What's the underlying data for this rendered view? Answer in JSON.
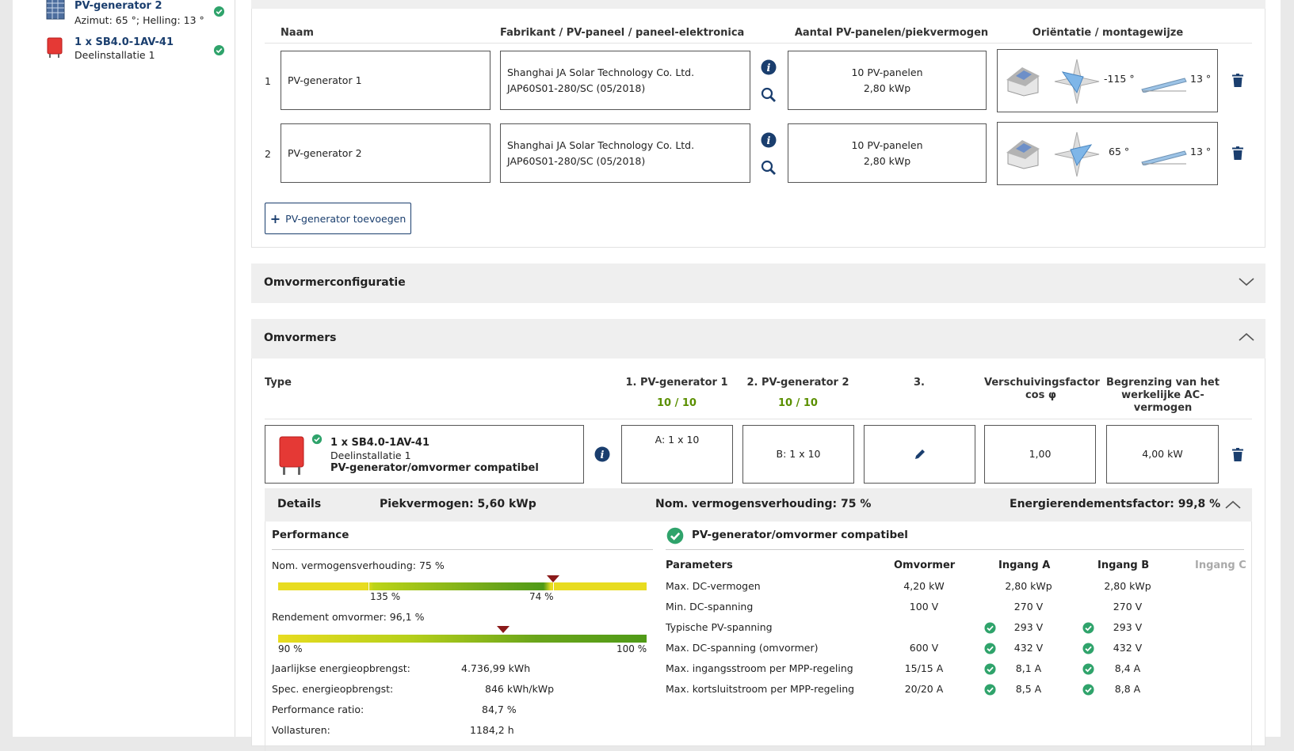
{
  "sidebar": {
    "items": [
      {
        "title": "PV-generator 2",
        "subtitle": "Azimut: 65 °; Helling: 13 °",
        "icon": "solar-panel-icon"
      },
      {
        "title": "1 x SB4.0-1AV-41",
        "subtitle": "Deelinstallatie 1",
        "icon": "inverter-icon"
      }
    ]
  },
  "generators": {
    "headers": {
      "name": "Naam",
      "manufacturer": "Fabrikant / PV-paneel / paneel-elektronica",
      "count": "Aantal PV-panelen/piekvermogen",
      "orientation": "Oriëntatie / montagewijze"
    },
    "rows": [
      {
        "index": "1",
        "name": "PV-generator 1",
        "maker": "Shanghai JA Solar Technology Co. Ltd.",
        "model": "JAP60S01-280/SC (05/2018)",
        "panels": "10 PV-panelen",
        "power": "2,80 kWp",
        "azimuth": "-115 °",
        "tilt": "13 °"
      },
      {
        "index": "2",
        "name": "PV-generator 2",
        "maker": "Shanghai JA Solar Technology Co. Ltd.",
        "model": "JAP60S01-280/SC (05/2018)",
        "panels": "10 PV-panelen",
        "power": "2,80 kWp",
        "azimuth": "65 °",
        "tilt": "13 °"
      }
    ],
    "add_button": "PV-generator toevoegen"
  },
  "panels": {
    "config_title": "Omvormerconfiguratie",
    "inverters_title": "Omvormers"
  },
  "inverter_table": {
    "headers": {
      "type": "Type",
      "gen1": "1. PV-generator 1",
      "gen1_count": "10 / 10",
      "gen2": "2. PV-generator 2",
      "gen2_count": "10 / 10",
      "gen3": "3.",
      "cosphi_line1": "Verschuivingsfactor",
      "cosphi_line2": "cos φ",
      "limit_line1": "Begrenzing van het",
      "limit_line2": "werkelijke AC-",
      "limit_line3": "vermogen"
    },
    "row": {
      "title": "1 x SB4.0-1AV-41",
      "subtitle": "Deelinstallatie 1",
      "status": "PV-generator/omvormer compatibel",
      "input_a": "A: 1 x 10",
      "input_b": "B: 1 x 10",
      "cosphi": "1,00",
      "limit": "4,00 kW"
    }
  },
  "details": {
    "label": "Details",
    "peak": "Piekvermogen: 5,60 kWp",
    "ratio": "Nom. vermogensverhouding: 75 %",
    "energy": "Energierendementsfactor: 99,8 %"
  },
  "performance": {
    "title": "Performance",
    "ratio_label": "Nom. vermogensverhouding: 75 %",
    "ratio_value": 75,
    "ratio_tick_left": "135 %",
    "ratio_tick_right": "74 %",
    "efficiency_label": "Rendement omvormer: 96,1 %",
    "efficiency_value": 96.1,
    "eff_min": "90 %",
    "eff_max": "100 %",
    "stats": [
      {
        "label": "Jaarlijkse energieopbrengst:",
        "value": "4.736,99 kWh"
      },
      {
        "label": "Spec. energieopbrengst:",
        "value": "846 kWh/kWp"
      },
      {
        "label": "Performance ratio:",
        "value": "84,7 %"
      },
      {
        "label": "Vollasturen:",
        "value": "1184,2 h"
      }
    ]
  },
  "compat": {
    "title": "PV-generator/omvormer compatibel",
    "columns": [
      "Parameters",
      "Omvormer",
      "Ingang A",
      "Ingang B",
      "Ingang C"
    ],
    "rows": [
      {
        "param": "Max. DC-vermogen",
        "inv": "4,20 kW",
        "a": "2,80 kWp",
        "b": "2,80 kWp",
        "ok": false
      },
      {
        "param": "Min. DC-spanning",
        "inv": "100 V",
        "a": "270 V",
        "b": "270 V",
        "ok": false
      },
      {
        "param": "Typische PV-spanning",
        "inv": "",
        "a": "293 V",
        "b": "293 V",
        "ok": true
      },
      {
        "param": "Max. DC-spanning (omvormer)",
        "inv": "600 V",
        "a": "432 V",
        "b": "432 V",
        "ok": true
      },
      {
        "param": "Max. ingangsstroom per MPP-regeling",
        "inv": "15/15 A",
        "a": "8,1 A",
        "b": "8,4 A",
        "ok": true
      },
      {
        "param": "Max. kortsluitstroom per MPP-regeling",
        "inv": "20/20 A",
        "a": "8,5 A",
        "b": "8,8 A",
        "ok": true
      }
    ]
  },
  "colors": {
    "accent": "#1a3e6e",
    "ok": "#2fa36b",
    "marker": "#8b1a1a",
    "green": "#5a8f00"
  }
}
